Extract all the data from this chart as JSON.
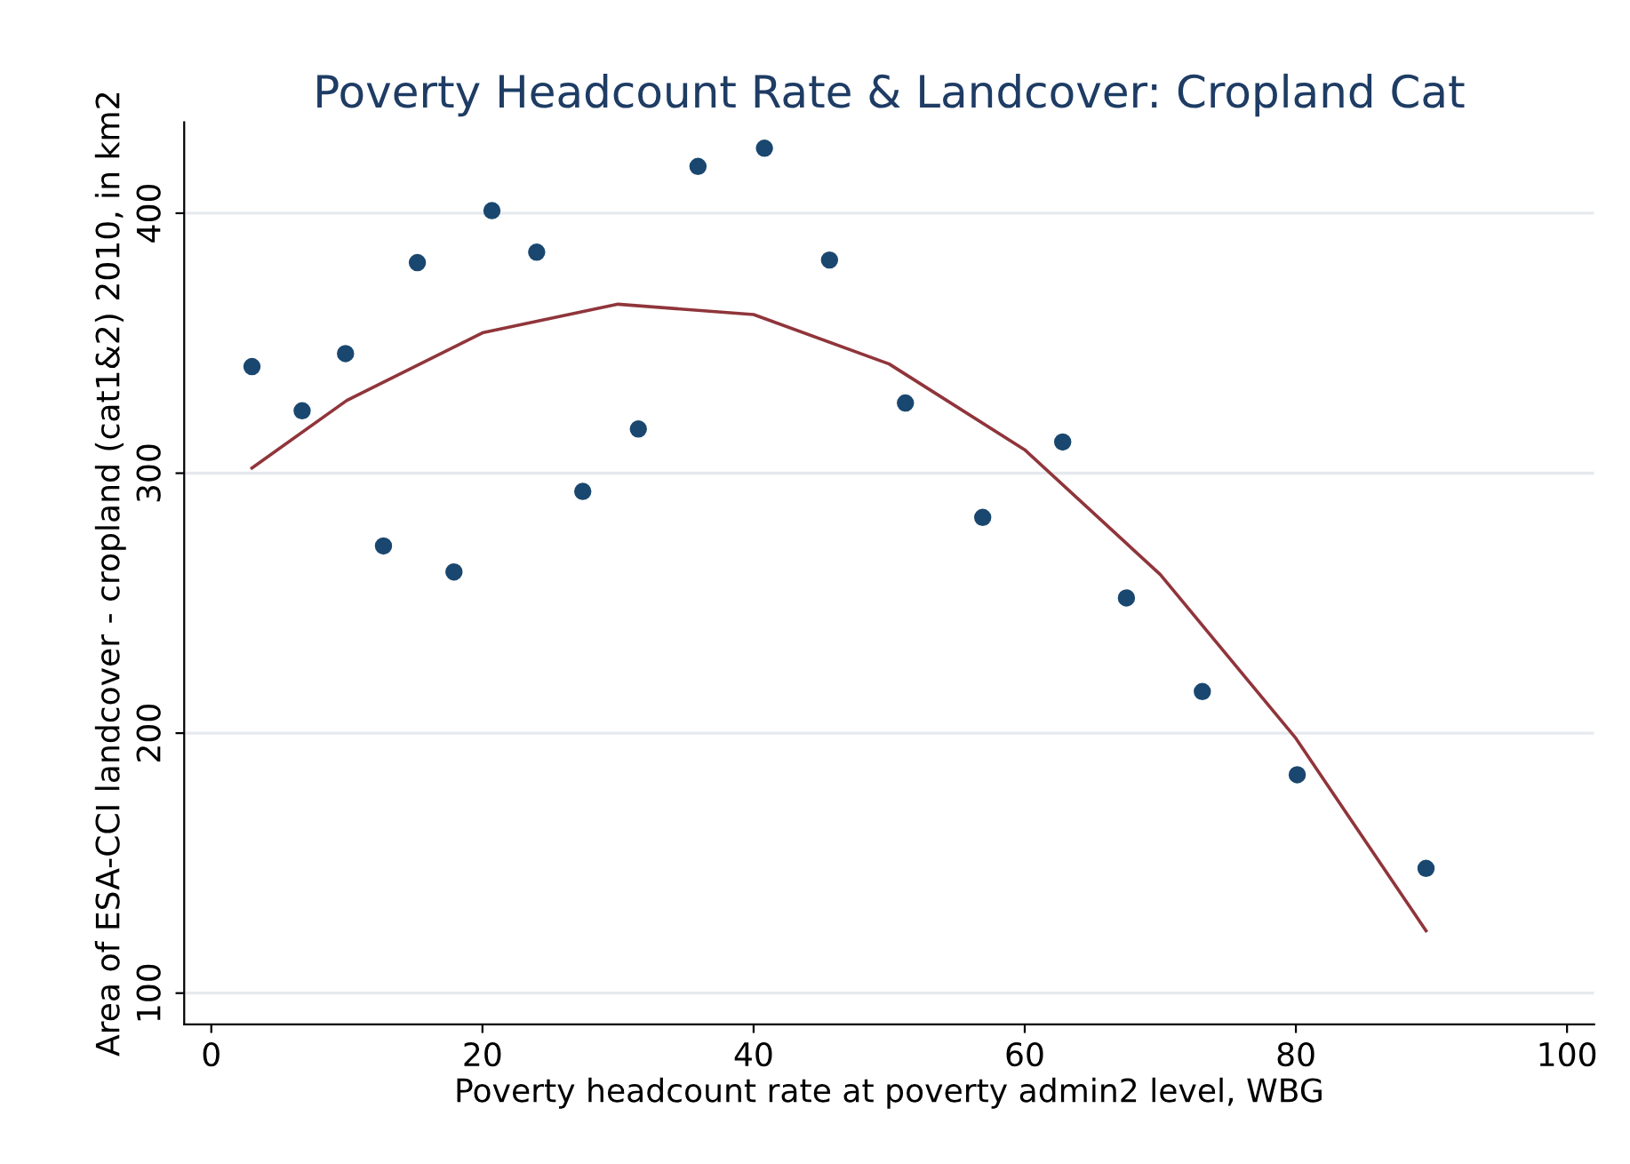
{
  "chart_data": {
    "type": "scatter",
    "title": "Poverty Headcount Rate & Landcover: Cropland Cat",
    "xlabel": "Poverty headcount rate at poverty admin2 level, WBG",
    "ylabel": "Area of ESA-CCI landcover - cropland (cat1&2) 2010, in km2",
    "xlim": [
      -2,
      102
    ],
    "ylim": [
      88,
      435
    ],
    "xticks": [
      0,
      20,
      40,
      60,
      80,
      100
    ],
    "yticks": [
      100,
      200,
      300,
      400
    ],
    "grid": "y",
    "marker": "circle",
    "series": [
      {
        "color": "#1a476f",
        "x": [
          3.0,
          6.7,
          9.9,
          12.7,
          15.2,
          17.9,
          20.7,
          24.0,
          27.4,
          31.5,
          35.9,
          40.8,
          45.6,
          51.2,
          56.9,
          62.8,
          67.5,
          73.1,
          80.1,
          89.6
        ],
        "values": [
          341,
          324,
          346,
          272,
          381,
          262,
          401,
          385,
          293,
          317,
          418,
          425,
          382,
          327,
          283,
          312,
          252,
          216,
          184,
          148
        ]
      },
      {
        "type": "line",
        "color": "#90353b",
        "marker": "none",
        "line_style": "solid",
        "x": [
          3,
          10,
          20,
          30,
          40,
          50,
          60,
          70,
          80,
          89.6
        ],
        "values": [
          302,
          328,
          354,
          365,
          361,
          342,
          309,
          261,
          198,
          124
        ]
      }
    ]
  }
}
